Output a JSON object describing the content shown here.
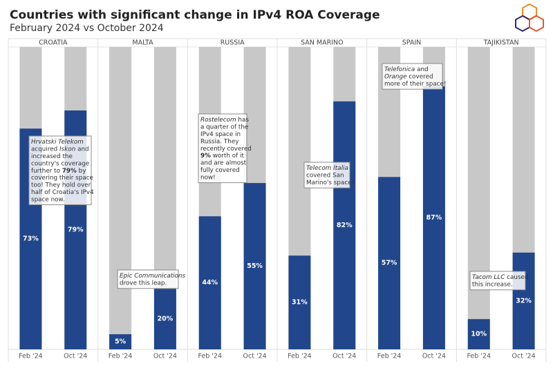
{
  "chart_data": {
    "type": "bar",
    "title": "Countries with significant change in IPv4 ROA Coverage",
    "subtitle": "February 2024 vs October 2024",
    "ylim": [
      0,
      100
    ],
    "color": "#21468b",
    "background_color": "#c8c8c8",
    "panels": [
      {
        "name": "CROATIA",
        "categories": [
          "Feb '24",
          "Oct '24"
        ],
        "values": [
          73,
          79
        ],
        "value_labels": [
          "73%",
          "79%"
        ],
        "annotation": [
          [
            {
              "text": "Hrvatski Telekom",
              "style": "italic"
            }
          ],
          [
            "acquired ",
            {
              "text": "Iskon",
              "style": "italic"
            },
            " and"
          ],
          [
            "increased the"
          ],
          [
            "country's coverage"
          ],
          [
            "further to ",
            {
              "text": "79%",
              "style": "bold"
            },
            " by"
          ],
          [
            "covering their space"
          ],
          [
            "too! They hold over"
          ],
          [
            "half of Croatia's IPv4"
          ],
          [
            "space now."
          ]
        ]
      },
      {
        "name": "MALTA",
        "categories": [
          "Feb '24",
          "Oct '24"
        ],
        "values": [
          5,
          20
        ],
        "value_labels": [
          "5%",
          "20%"
        ],
        "annotation": [
          [
            {
              "text": "Epic Communications",
              "style": "italic"
            }
          ],
          [
            "drove this leap."
          ]
        ]
      },
      {
        "name": "RUSSIA",
        "categories": [
          "Feb '24",
          "Oct '24"
        ],
        "values": [
          44,
          55
        ],
        "value_labels": [
          "44%",
          "55%"
        ],
        "annotation": [
          [
            {
              "text": "Rostelecom",
              "style": "italic"
            },
            " has"
          ],
          [
            "a quarter of the"
          ],
          [
            "IPv4 space in"
          ],
          [
            "Russia. They"
          ],
          [
            "recently covered"
          ],
          [
            {
              "text": "9%",
              "style": "bold"
            },
            " worth of it"
          ],
          [
            "and are almost"
          ],
          [
            "fully covered"
          ],
          [
            "now!"
          ]
        ]
      },
      {
        "name": "SAN MARINO",
        "categories": [
          "Feb '24",
          "Oct '24"
        ],
        "values": [
          31,
          82
        ],
        "value_labels": [
          "31%",
          "82%"
        ],
        "annotation": [
          [
            {
              "text": "Telecom Italia",
              "style": "italic"
            }
          ],
          [
            "covered San"
          ],
          [
            "Marino's space!"
          ]
        ]
      },
      {
        "name": "SPAIN",
        "categories": [
          "Feb '24",
          "Oct '24"
        ],
        "values": [
          57,
          87
        ],
        "value_labels": [
          "57%",
          "87%"
        ],
        "annotation": [
          [
            {
              "text": "Telefonica",
              "style": "italic"
            },
            " and"
          ],
          [
            {
              "text": "Orange",
              "style": "italic"
            },
            " covered"
          ],
          [
            "more of their space!"
          ]
        ]
      },
      {
        "name": "TAJIKISTAN",
        "categories": [
          "Feb '24",
          "Oct '24"
        ],
        "values": [
          10,
          32
        ],
        "value_labels": [
          "10%",
          "32%"
        ],
        "annotation": [
          [
            {
              "text": "Tacom LLC",
              "style": "italic"
            },
            " caused"
          ],
          [
            "this increase."
          ]
        ]
      }
    ]
  }
}
